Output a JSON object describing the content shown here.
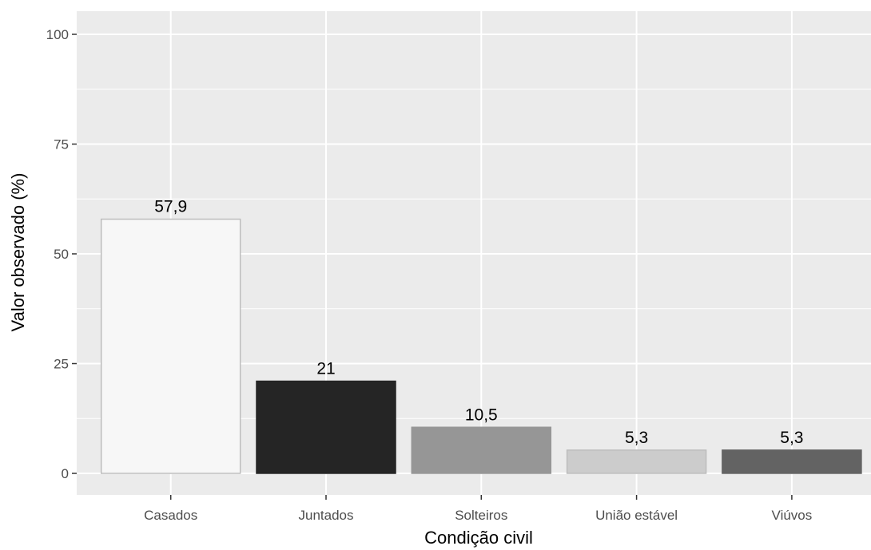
{
  "chart_data": {
    "type": "bar",
    "title": "",
    "xlabel": "Condição civil",
    "ylabel": "Valor observado (%)",
    "categories": [
      "Casados",
      "Juntados",
      "Solteiros",
      "União estável",
      "Viúvos"
    ],
    "values": [
      57.9,
      21,
      10.5,
      5.3,
      5.3
    ],
    "data_labels": [
      "57,9",
      "21",
      "10,5",
      "5,3",
      "5,3"
    ],
    "bar_colors": [
      "#f7f7f7",
      "#252525",
      "#969696",
      "#cccccc",
      "#636363"
    ],
    "bar_outline_colors": [
      "#bdbdbd",
      "#252525",
      "#969696",
      "#bdbdbd",
      "#636363"
    ],
    "yticks": [
      0,
      25,
      50,
      75,
      100
    ],
    "ytick_labels": [
      "0",
      "25",
      "50",
      "75",
      "100"
    ],
    "ylim": [
      0,
      100
    ],
    "grid": true,
    "legend": "none",
    "panel_background": "#ebebeb",
    "gridline_color": "#ffffff"
  }
}
